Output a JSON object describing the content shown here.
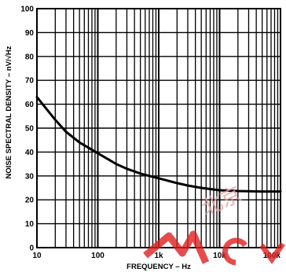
{
  "chart_data": {
    "type": "line",
    "xlabel": "FREQUENCY – Hz",
    "ylabel": "NOISE SPECTRAL DENSITY – nV/√Hz",
    "x_scale": "log",
    "xlim": [
      10,
      100000
    ],
    "ylim": [
      0,
      100
    ],
    "grid": true,
    "x_ticks": [
      "10",
      "100",
      "1k",
      "10k",
      "100k"
    ],
    "y_ticks": [
      "0",
      "10",
      "20",
      "30",
      "40",
      "50",
      "60",
      "70",
      "80",
      "90",
      "100"
    ],
    "series": [
      {
        "x": [
          10,
          20,
          30,
          50,
          100,
          200,
          300,
          500,
          1000,
          2000,
          3000,
          5000,
          10000,
          20000,
          50000,
          100000
        ],
        "y": [
          63,
          53.5,
          48.5,
          44,
          39.5,
          35,
          33,
          31,
          29,
          27,
          26,
          25,
          24,
          23.7,
          23.5,
          23.5
        ]
      }
    ]
  },
  "watermark": "北京"
}
